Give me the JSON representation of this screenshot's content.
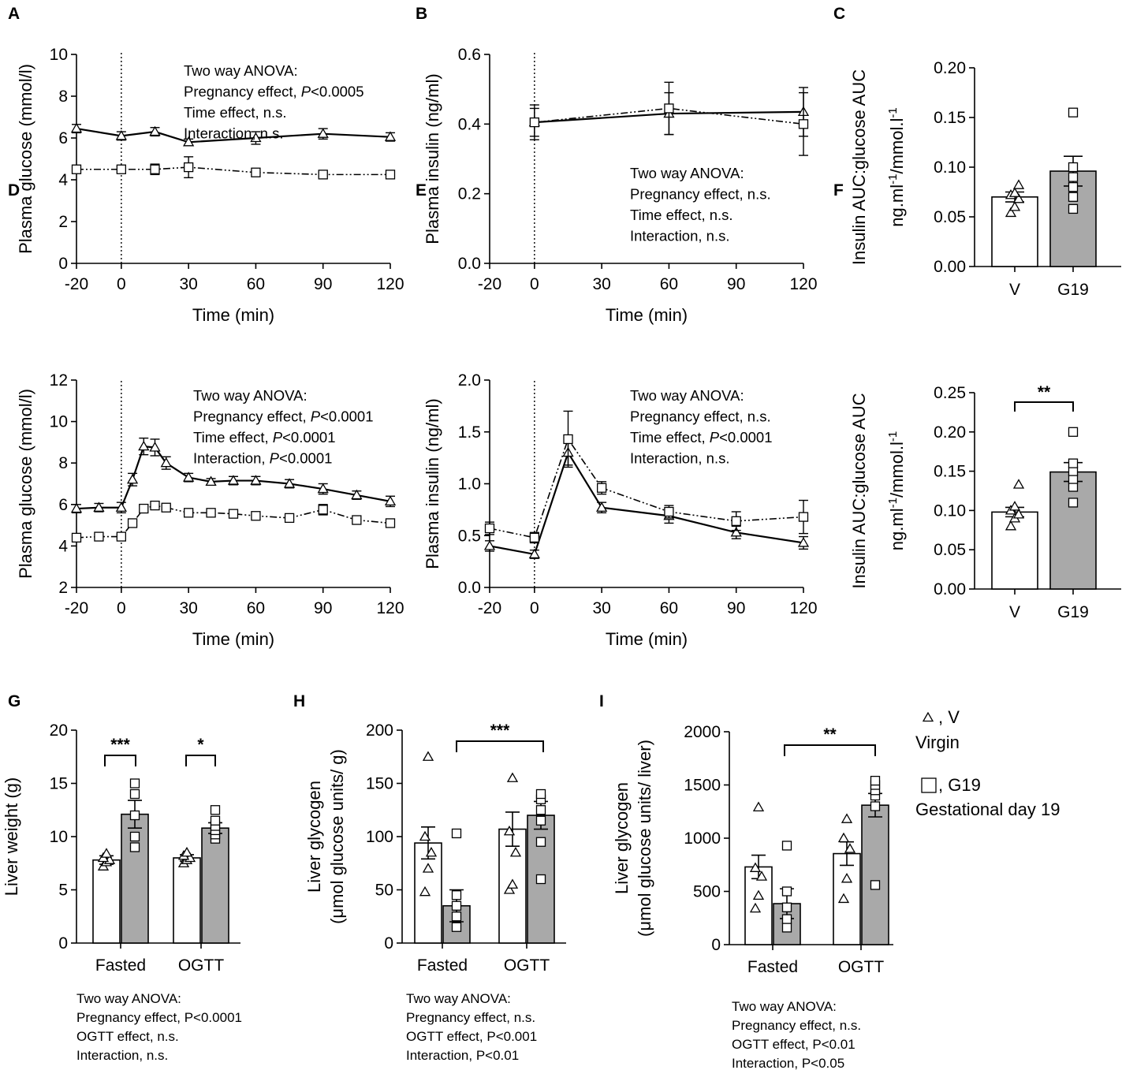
{
  "figure": {
    "legend": {
      "v_symbol_label": ", V",
      "v_desc": "Virgin",
      "g19_symbol_label": ", G19",
      "g19_desc": "Gestational day 19"
    }
  },
  "chart_data": [
    {
      "id": "A",
      "type": "line",
      "ylabel": "Plasma glucose (mmol/l)",
      "xlabel": "Time (min)",
      "xlim": [
        -20,
        120
      ],
      "ylim": [
        0,
        10
      ],
      "xticks": [
        -20,
        0,
        30,
        60,
        90,
        120
      ],
      "yticks": [
        0,
        2,
        4,
        6,
        8,
        10
      ],
      "series": [
        {
          "name": "V",
          "marker": "triangle",
          "style": "solid",
          "x": [
            -20,
            0,
            15,
            30,
            60,
            90,
            120
          ],
          "y": [
            6.45,
            6.1,
            6.3,
            5.8,
            6.0,
            6.2,
            6.05
          ],
          "err": [
            0.2,
            0.2,
            0.2,
            0.15,
            0.3,
            0.25,
            0.2
          ]
        },
        {
          "name": "G19",
          "marker": "square",
          "style": "dashdot",
          "x": [
            -20,
            0,
            15,
            30,
            60,
            90,
            120
          ],
          "y": [
            4.5,
            4.5,
            4.5,
            4.6,
            4.35,
            4.25,
            4.25
          ],
          "err": [
            0.1,
            0.15,
            0.25,
            0.5,
            0.1,
            0.1,
            0.1
          ]
        }
      ],
      "annotation": [
        "Two way ANOVA:",
        "Pregnancy effect, P<0.0005",
        "Time effect, n.s.",
        "Interaction, n.s."
      ]
    },
    {
      "id": "B",
      "type": "line",
      "ylabel": "Plasma insulin (ng/ml)",
      "xlabel": "Time (min)",
      "xlim": [
        -20,
        120
      ],
      "ylim": [
        0,
        0.6
      ],
      "xticks": [
        -20,
        0,
        30,
        60,
        90,
        120
      ],
      "yticks": [
        "0.0",
        "0.2",
        "0.4",
        "0.6"
      ],
      "series": [
        {
          "name": "V",
          "marker": "triangle",
          "style": "solid",
          "x": [
            0,
            60,
            120
          ],
          "y": [
            0.405,
            0.43,
            0.435
          ],
          "err": [
            0.05,
            0.06,
            0.07
          ]
        },
        {
          "name": "G19",
          "marker": "square",
          "style": "dashdot",
          "x": [
            0,
            60,
            120
          ],
          "y": [
            0.405,
            0.445,
            0.4
          ],
          "err": [
            0.04,
            0.075,
            0.09
          ]
        }
      ],
      "annotation": [
        "Two way ANOVA:",
        "Pregnancy effect, n.s.",
        "Time effect, n.s.",
        "Interaction, n.s."
      ]
    },
    {
      "id": "C",
      "type": "bar",
      "ylabel_line1": "Insulin AUC:glucose AUC",
      "ylabel_line2": "ng.ml-1/mmol.l-1",
      "categories": [
        "V",
        "G19"
      ],
      "ylim": [
        0,
        0.2
      ],
      "yticks": [
        "0.00",
        "0.05",
        "0.10",
        "0.15",
        "0.20"
      ],
      "values": [
        0.07,
        0.096
      ],
      "err": [
        0.005,
        0.015
      ],
      "points": [
        [
          0.054,
          0.06,
          0.068,
          0.072,
          0.074,
          0.082
        ],
        [
          0.058,
          0.07,
          0.08,
          0.09,
          0.1,
          0.155
        ]
      ],
      "significance": ""
    },
    {
      "id": "D",
      "type": "line",
      "ylabel": "Plasma glucose (mmol/l)",
      "xlabel": "Time (min)",
      "xlim": [
        -20,
        120
      ],
      "ylim": [
        2,
        12
      ],
      "xticks": [
        -20,
        0,
        30,
        60,
        90,
        120
      ],
      "yticks": [
        2,
        4,
        6,
        8,
        10,
        12
      ],
      "series": [
        {
          "name": "V",
          "marker": "triangle",
          "style": "solid",
          "x": [
            -20,
            -10,
            0,
            5,
            10,
            15,
            20,
            30,
            40,
            50,
            60,
            75,
            90,
            105,
            120
          ],
          "y": [
            5.8,
            5.85,
            5.85,
            7.2,
            8.8,
            8.75,
            8.0,
            7.3,
            7.1,
            7.15,
            7.15,
            7.0,
            6.75,
            6.45,
            6.15
          ],
          "err": [
            0.2,
            0.2,
            0.25,
            0.3,
            0.4,
            0.4,
            0.3,
            0.2,
            0.15,
            0.2,
            0.2,
            0.2,
            0.25,
            0.2,
            0.25
          ]
        },
        {
          "name": "G19",
          "marker": "square",
          "style": "dashdot",
          "x": [
            -20,
            -10,
            0,
            5,
            10,
            15,
            20,
            30,
            40,
            50,
            60,
            75,
            90,
            105,
            120
          ],
          "y": [
            4.4,
            4.45,
            4.45,
            5.1,
            5.8,
            5.95,
            5.85,
            5.6,
            5.6,
            5.55,
            5.45,
            5.35,
            5.75,
            5.25,
            5.1
          ],
          "err": [
            0.1,
            0.1,
            0.1,
            0.1,
            0.15,
            0.15,
            0.1,
            0.1,
            0.1,
            0.1,
            0.1,
            0.1,
            0.25,
            0.1,
            0.1
          ]
        }
      ],
      "annotation": [
        "Two way ANOVA:",
        "Pregnancy effect, P<0.0001",
        "Time effect, P<0.0001",
        "Interaction, P<0.0001"
      ]
    },
    {
      "id": "E",
      "type": "line",
      "ylabel": "Plasma insulin (ng/ml)",
      "xlabel": "Time (min)",
      "xlim": [
        -20,
        120
      ],
      "ylim": [
        0,
        2
      ],
      "xticks": [
        -20,
        0,
        30,
        60,
        90,
        120
      ],
      "yticks": [
        "0.0",
        "0.5",
        "1.0",
        "1.5",
        "2.0"
      ],
      "series": [
        {
          "name": "V",
          "marker": "triangle",
          "style": "solid",
          "x": [
            -20,
            0,
            15,
            30,
            60,
            90,
            120
          ],
          "y": [
            0.4,
            0.32,
            1.3,
            0.77,
            0.69,
            0.53,
            0.43
          ],
          "err": [
            0.05,
            0.04,
            0.12,
            0.05,
            0.07,
            0.06,
            0.06
          ]
        },
        {
          "name": "G19",
          "marker": "square",
          "style": "dashdot",
          "x": [
            -20,
            0,
            15,
            30,
            60,
            90,
            120
          ],
          "y": [
            0.57,
            0.48,
            1.43,
            0.96,
            0.73,
            0.64,
            0.68
          ],
          "err": [
            0.06,
            0.05,
            0.27,
            0.06,
            0.06,
            0.09,
            0.16
          ]
        }
      ],
      "annotation": [
        "Two way ANOVA:",
        "Pregnancy effect, n.s.",
        "Time effect, P<0.0001",
        "Interaction, n.s."
      ]
    },
    {
      "id": "F",
      "type": "bar",
      "ylabel_line1": "Insulin AUC:glucose AUC",
      "ylabel_line2": "ng.ml-1/mmol.l-1",
      "categories": [
        "V",
        "G19"
      ],
      "ylim": [
        0,
        0.25
      ],
      "yticks": [
        "0.00",
        "0.05",
        "0.10",
        "0.15",
        "0.20",
        "0.25"
      ],
      "values": [
        0.098,
        0.149
      ],
      "err": [
        0.006,
        0.012
      ],
      "points": [
        [
          0.08,
          0.09,
          0.095,
          0.1,
          0.105,
          0.133
        ],
        [
          0.11,
          0.13,
          0.14,
          0.15,
          0.16,
          0.2
        ]
      ],
      "significance": "**"
    },
    {
      "id": "G",
      "type": "bar",
      "ylabel": "Liver weight (g)",
      "groups": [
        "Fasted",
        "OGTT"
      ],
      "ylim": [
        0,
        20
      ],
      "yticks": [
        0,
        5,
        10,
        15,
        20
      ],
      "values": [
        [
          7.8,
          12.1
        ],
        [
          8.0,
          10.8
        ]
      ],
      "err": [
        [
          0.4,
          1.3
        ],
        [
          0.3,
          0.5
        ]
      ],
      "points": [
        [
          [
            7.2,
            7.6,
            7.8,
            8.0,
            8.4
          ],
          [
            9.0,
            10.0,
            12.0,
            14.0,
            15.0
          ]
        ],
        [
          [
            7.5,
            7.8,
            8.0,
            8.2,
            8.5
          ],
          [
            9.8,
            10.2,
            10.6,
            11.0,
            11.5,
            12.5
          ]
        ]
      ],
      "brackets": [
        "***",
        "*"
      ],
      "annotation": [
        "Two way ANOVA:",
        "Pregnancy effect, P<0.0001",
        "OGTT effect, n.s.",
        "Interaction, n.s."
      ]
    },
    {
      "id": "H",
      "type": "bar",
      "ylabel_line1": "Liver glycogen",
      "ylabel_line2": "(μmol glucose units/ g)",
      "groups": [
        "Fasted",
        "OGTT"
      ],
      "ylim": [
        0,
        200
      ],
      "yticks": [
        0,
        50,
        100,
        150,
        200
      ],
      "values": [
        [
          94,
          35
        ],
        [
          107,
          120
        ]
      ],
      "err": [
        [
          15,
          15
        ],
        [
          16,
          13
        ]
      ],
      "points": [
        [
          [
            48,
            70,
            85,
            100,
            175
          ],
          [
            15,
            25,
            35,
            45,
            103
          ]
        ],
        [
          [
            50,
            55,
            85,
            105,
            155
          ],
          [
            60,
            95,
            115,
            125,
            135,
            140
          ]
        ]
      ],
      "brackets": [
        "***"
      ],
      "annotation": [
        "Two way ANOVA:",
        "Pregnancy effect, n.s.",
        "OGTT effect, P<0.001",
        "Interaction, P<0.01"
      ]
    },
    {
      "id": "I",
      "type": "bar",
      "ylabel_line1": "Liver glycogen",
      "ylabel_line2": "(μmol glucose units/ liver)",
      "groups": [
        "Fasted",
        "OGTT"
      ],
      "ylim": [
        0,
        2000
      ],
      "yticks": [
        0,
        500,
        1000,
        1500,
        2000
      ],
      "values": [
        [
          730,
          385
        ],
        [
          855,
          1310
        ]
      ],
      "err": [
        [
          110,
          140
        ],
        [
          110,
          110
        ]
      ],
      "points": [
        [
          [
            340,
            460,
            640,
            720,
            1290
          ],
          [
            160,
            240,
            350,
            500,
            930
          ]
        ],
        [
          [
            430,
            620,
            900,
            1000,
            1180
          ],
          [
            560,
            1300,
            1400,
            1450,
            1500,
            1540
          ]
        ]
      ],
      "brackets": [
        "**"
      ],
      "annotation": [
        "Two way ANOVA:",
        "Pregnancy effect, n.s.",
        "OGTT effect, P<0.01",
        "Interaction, P<0.05"
      ]
    }
  ]
}
